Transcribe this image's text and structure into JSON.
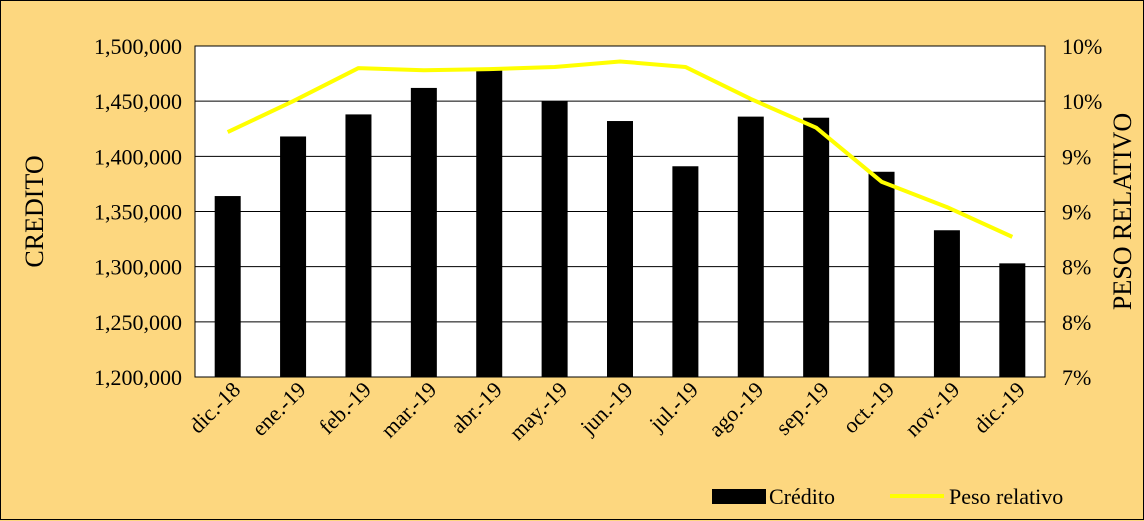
{
  "chart_data": {
    "type": "bar",
    "categories": [
      "dic.-18",
      "ene.-19",
      "feb.-19",
      "mar.-19",
      "abr.-19",
      "may.-19",
      "jun.-19",
      "jul.-19",
      "ago.-19",
      "sep.-19",
      "oct.-19",
      "nov.-19",
      "dic.-19"
    ],
    "series": [
      {
        "name": "Crédito",
        "type": "bar",
        "axis": "left",
        "color": "#000000",
        "values": [
          1364000,
          1418000,
          1438000,
          1462000,
          1478000,
          1450000,
          1432000,
          1391000,
          1436000,
          1435000,
          1386000,
          1333000,
          1303000
        ]
      },
      {
        "name": "Peso relativo",
        "type": "line",
        "axis": "right",
        "color": "#ffff00",
        "values": [
          0.0922,
          0.095,
          0.098,
          0.0978,
          0.0979,
          0.0981,
          0.0986,
          0.0981,
          0.0952,
          0.0926,
          0.0877,
          0.0854,
          0.0827
        ]
      }
    ],
    "ylabel_left": "CREDITO",
    "ylabel_right": "PESO RELATIVO",
    "ylim_left": [
      1200000,
      1500000
    ],
    "ylim_right": [
      0.07,
      0.1
    ],
    "yticks_left": [
      "1,200,000",
      "1,250,000",
      "1,300,000",
      "1,350,000",
      "1,400,000",
      "1,450,000",
      "1,500,000"
    ],
    "yticks_right": [
      "7%",
      "8%",
      "8%",
      "9%",
      "9%",
      "10%",
      "10%"
    ],
    "grid": true,
    "legend_position": "bottom-right",
    "background_color": "#fdd77f",
    "plot_background": "#ffffff"
  }
}
